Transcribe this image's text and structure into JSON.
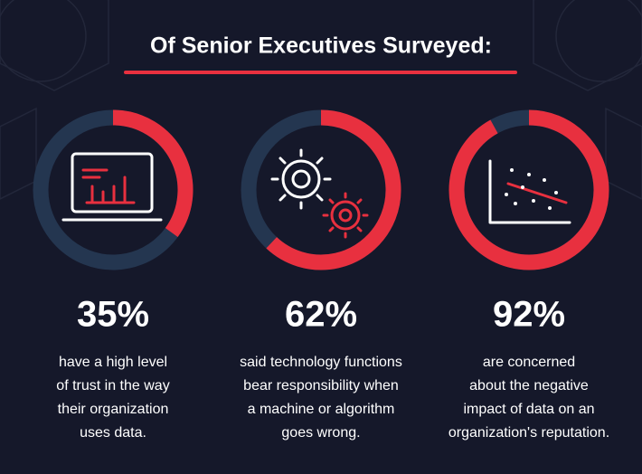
{
  "title": "Of Senior Executives Surveyed:",
  "chart_data": [
    {
      "type": "donut",
      "values": [
        35
      ],
      "value_labels": [
        "35%"
      ],
      "color": "#e8303f",
      "track_color": "#243650",
      "caption": [
        "have a high level",
        "of trust in the way",
        "their organization",
        "uses data."
      ]
    },
    {
      "type": "donut",
      "values": [
        62
      ],
      "value_labels": [
        "62%"
      ],
      "color": "#e8303f",
      "track_color": "#243650",
      "caption": [
        "said technology functions",
        "bear responsibility when",
        "a machine or algorithm",
        "goes wrong."
      ]
    },
    {
      "type": "donut",
      "values": [
        92
      ],
      "value_labels": [
        "92%"
      ],
      "color": "#e8303f",
      "track_color": "#243650",
      "caption": [
        "are concerned",
        "about the negative",
        "impact of data on an",
        "organization's reputation."
      ]
    }
  ]
}
